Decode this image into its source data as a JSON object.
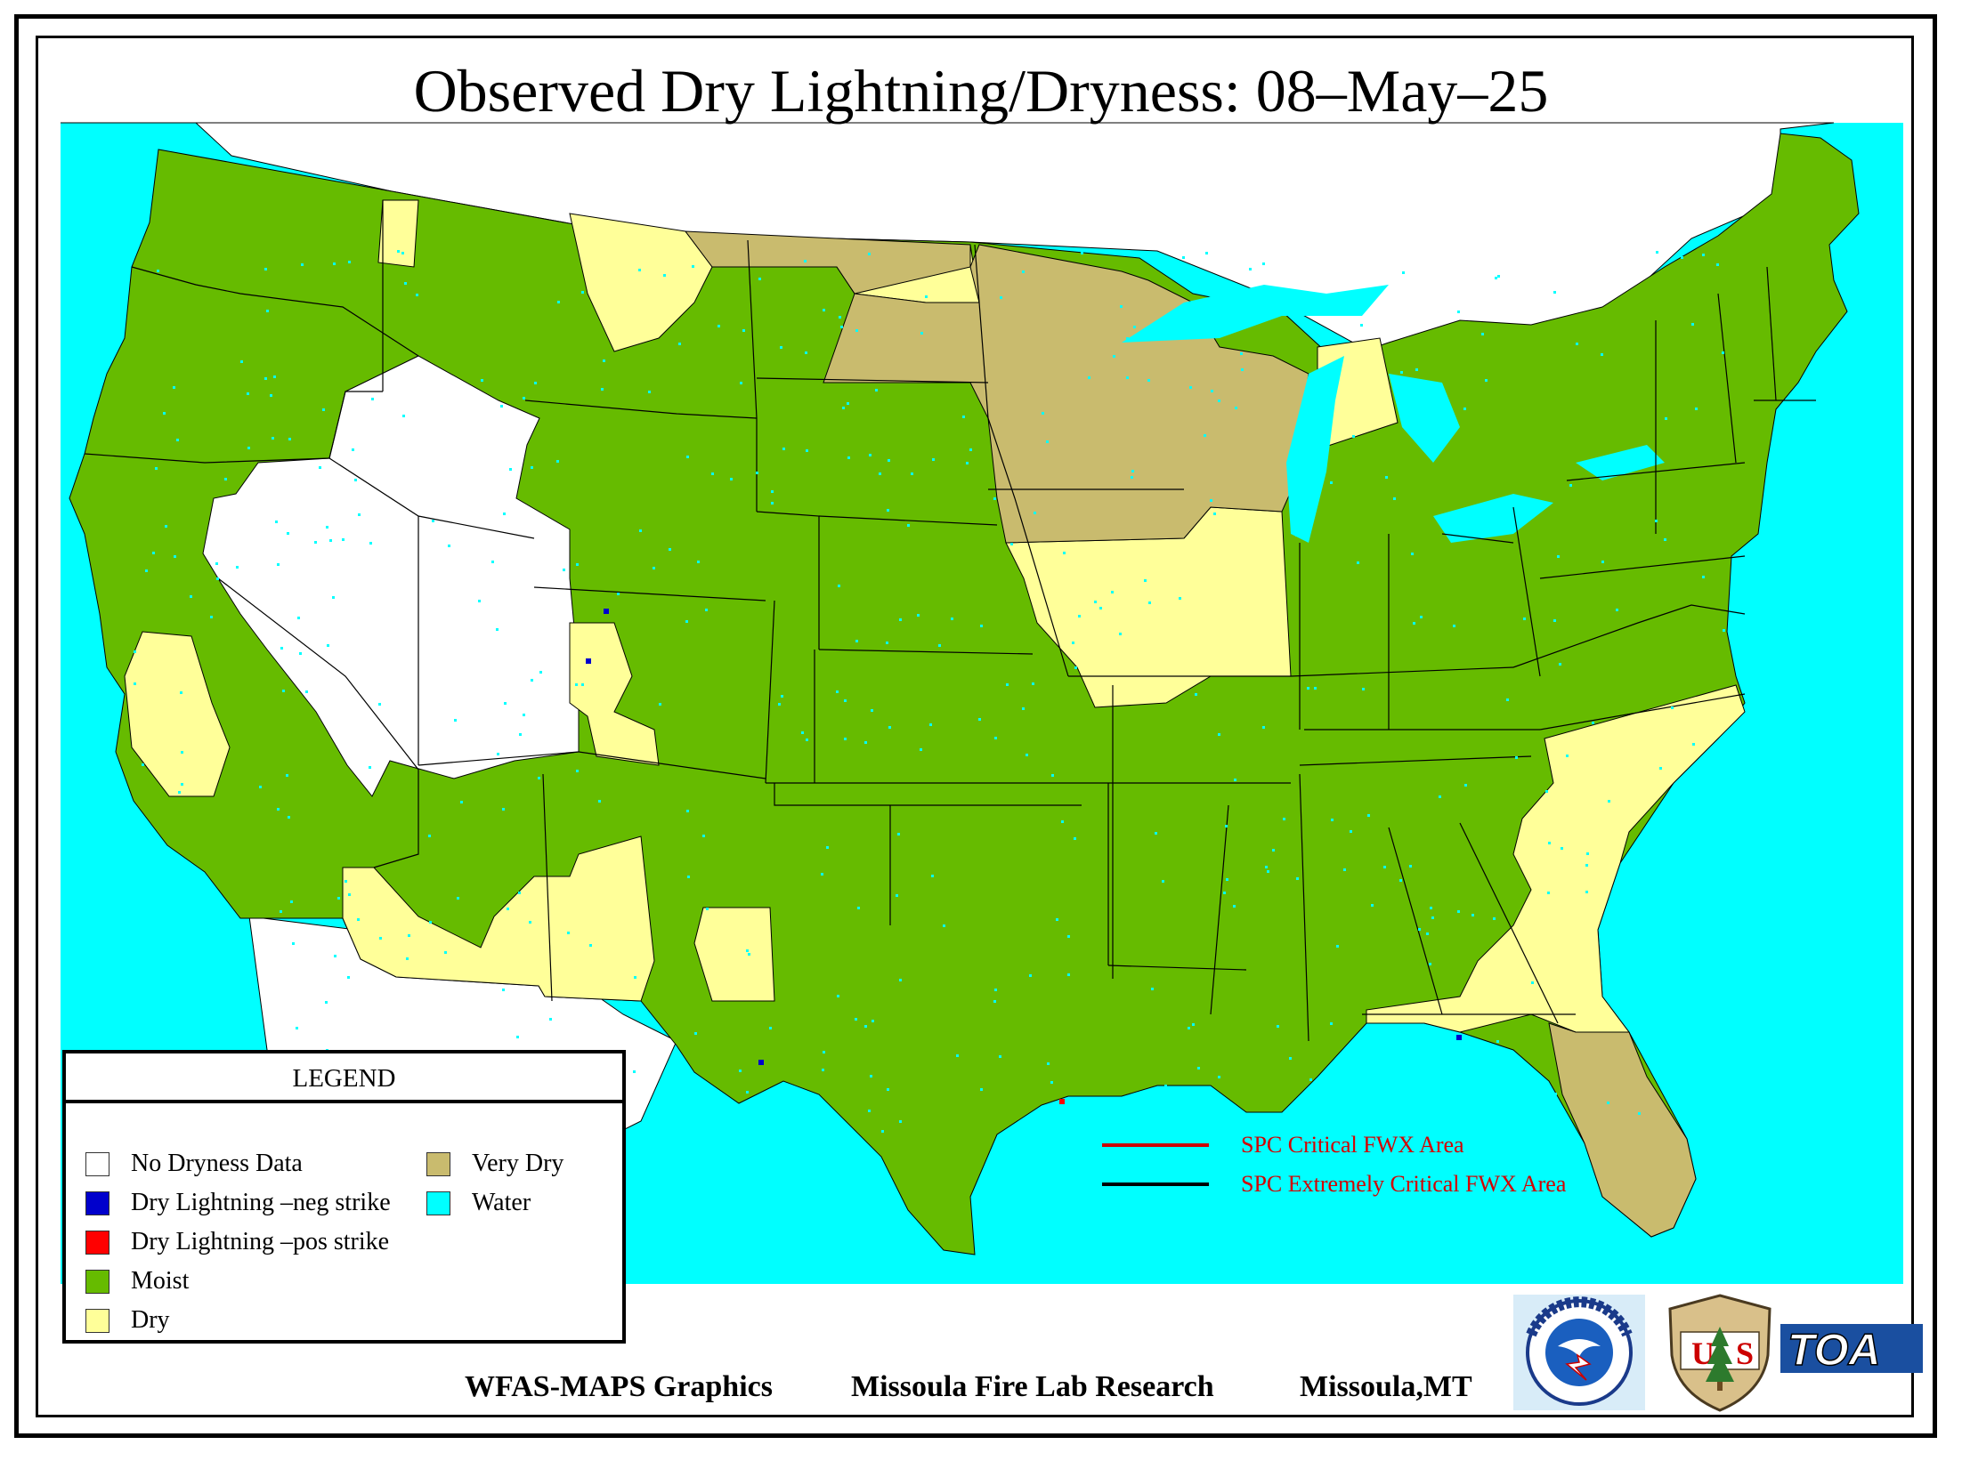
{
  "title": "Observed Dry Lightning/Dryness: 08–May–25",
  "colors": {
    "water": "#00ffff",
    "moist": "#66bb00",
    "dry": "#ffff99",
    "very_dry": "#c9bb6e",
    "no_data": "#ffffff",
    "neg_strike": "#0000cc",
    "pos_strike": "#ff0000",
    "boundary": "#000000",
    "fwx_critical": "#cc0000",
    "fwx_extreme": "#000000"
  },
  "legend": {
    "title": "LEGEND",
    "items": [
      {
        "label": "No Dryness Data",
        "color": "#ffffff"
      },
      {
        "label": "Dry Lightning –neg strike",
        "color": "#0000cc"
      },
      {
        "label": "Dry Lightning –pos strike",
        "color": "#ff0000"
      },
      {
        "label": "Moist",
        "color": "#66bb00"
      },
      {
        "label": "Dry",
        "color": "#ffff99"
      },
      {
        "label": "Very Dry",
        "color": "#c9bb6e"
      },
      {
        "label": "Water",
        "color": "#00ffff"
      }
    ]
  },
  "fwx": {
    "critical": "SPC Critical FWX Area",
    "extreme": "SPC Extremely Critical FWX Area"
  },
  "footer": {
    "left": "WFAS-MAPS Graphics",
    "middle": "Missoula Fire Lab Research",
    "right": "Missoula,MT"
  },
  "logos": {
    "nws": "national-weather-service-logo",
    "usfs": "us-forest-service-logo",
    "toa": "TOA"
  }
}
